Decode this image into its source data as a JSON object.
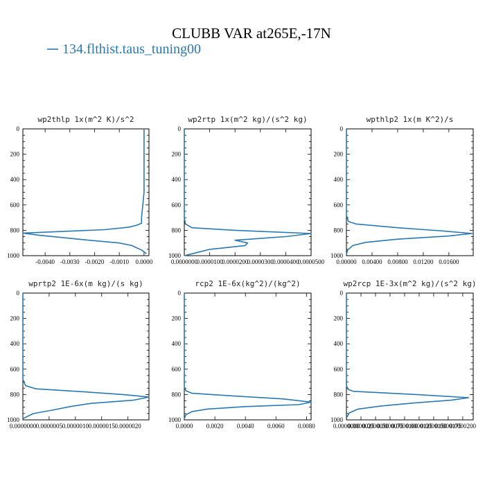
{
  "figure": {
    "title": "CLUBB VAR at265E,-17N",
    "legend": [
      {
        "label": "134.flthist.taus_tuning00",
        "color": "#2a78b0"
      }
    ]
  },
  "chart_data": [
    {
      "type": "line",
      "title": "wp2thlp  1x(m^2 K)/s^2",
      "xlim": [
        -0.0049,
        0.0002
      ],
      "ylim": [
        1000,
        0
      ],
      "xticks": [
        -0.004,
        -0.003,
        -0.002,
        -0.001,
        0.0
      ],
      "xtick_labels": [
        "-0.0040",
        "-0.0030",
        "-0.0020",
        "-0.0010",
        "0.0000"
      ],
      "yticks": [
        0,
        200,
        400,
        600,
        800,
        1000
      ],
      "ytick_labels": [
        "0",
        "200",
        "400",
        "600",
        "800",
        "1000"
      ],
      "series": [
        {
          "color": "#2a78b0",
          "x": [
            0.0,
            0.0,
            -0.0001,
            -0.0001,
            -0.0003,
            -0.0006,
            -0.0016,
            -0.0034,
            -0.0049,
            -0.0042,
            -0.0024,
            -0.001,
            -0.0005,
            -0.0001,
            0.0001
          ],
          "y": [
            0,
            500,
            700,
            745,
            760,
            775,
            795,
            810,
            822,
            840,
            875,
            900,
            920,
            955,
            985
          ]
        }
      ]
    },
    {
      "type": "line",
      "title": "wp2rtp  1x(m^2 kg)/(s^2 kg)",
      "xlim": [
        0.0,
        5e-05
      ],
      "ylim": [
        1000,
        0
      ],
      "xticks": [
        0.0,
        1e-05,
        2e-05,
        3e-05,
        4e-05,
        5e-05
      ],
      "xtick_labels": [
        "0.0000000",
        "0.0000100",
        "0.0000200",
        "0.0000300",
        "0.0000400",
        "0.0000500"
      ],
      "yticks": [
        0,
        200,
        400,
        600,
        800,
        1000
      ],
      "ytick_labels": [
        "0",
        "200",
        "400",
        "600",
        "800",
        "1000"
      ],
      "series": [
        {
          "color": "#2a78b0",
          "x": [
            0.0,
            0.0,
            5e-07,
            3e-06,
            2e-05,
            5e-05,
            4e-05,
            2e-05,
            2.5e-05,
            2.4e-05,
            1e-05,
            3e-06,
            0.0
          ],
          "y": [
            0,
            700,
            750,
            780,
            800,
            825,
            850,
            878,
            900,
            920,
            950,
            985,
            1000
          ]
        }
      ]
    },
    {
      "type": "line",
      "title": "wpthlp2  1x(m K^2)/s",
      "xlim": [
        0.0,
        0.0198
      ],
      "ylim": [
        1000,
        0
      ],
      "xticks": [
        0.0,
        0.004,
        0.008,
        0.012,
        0.016
      ],
      "xtick_labels": [
        "0.00000",
        "0.00400",
        "0.00800",
        "0.01200",
        "0.01600"
      ],
      "yticks": [
        0,
        200,
        400,
        600,
        800,
        1000
      ],
      "ytick_labels": [
        "0",
        "200",
        "400",
        "600",
        "800",
        "1000"
      ],
      "series": [
        {
          "color": "#2a78b0",
          "x": [
            0.0,
            0.0,
            0.0003,
            0.0015,
            0.008,
            0.015,
            0.0196,
            0.016,
            0.008,
            0.003,
            0.001,
            0.0002,
            0.0
          ],
          "y": [
            0,
            680,
            730,
            750,
            780,
            805,
            825,
            845,
            870,
            895,
            920,
            955,
            990
          ]
        }
      ]
    },
    {
      "type": "line",
      "title": "wprtp2  1E-6x(m kg)/(s kg)",
      "xlim": [
        0.0,
        2.4e-06
      ],
      "ylim": [
        1000,
        0
      ],
      "xticks": [
        0.0,
        5e-07,
        1e-06,
        1.5e-06,
        2e-06
      ],
      "xtick_labels": [
        "0.0000000",
        "0.0000005",
        "0.0000010",
        "0.0000015",
        "0.0000020"
      ],
      "yticks": [
        0,
        200,
        400,
        600,
        800,
        1000
      ],
      "ytick_labels": [
        "0",
        "200",
        "400",
        "600",
        "800",
        "1000"
      ],
      "series": [
        {
          "color": "#2a78b0",
          "x": [
            0.0,
            0.0,
            5e-08,
            2.5e-07,
            1.2e-06,
            1.9e-06,
            2.4e-06,
            2.1e-06,
            1.3e-06,
            9e-07,
            6e-07,
            2e-07,
            0.0
          ],
          "y": [
            0,
            680,
            730,
            755,
            780,
            800,
            820,
            845,
            870,
            895,
            920,
            950,
            990
          ]
        }
      ]
    },
    {
      "type": "line",
      "title": "rcp2  1E-6x(kg^2)/(kg^2)",
      "xlim": [
        0.0,
        0.0083
      ],
      "ylim": [
        1000,
        0
      ],
      "xticks": [
        0.0,
        0.002,
        0.004,
        0.006,
        0.008
      ],
      "xtick_labels": [
        "0.0000",
        "0.0020",
        "0.0040",
        "0.0060",
        "0.0080"
      ],
      "yticks": [
        0,
        200,
        400,
        600,
        800,
        1000
      ],
      "ytick_labels": [
        "0",
        "200",
        "400",
        "600",
        "800",
        "1000"
      ],
      "series": [
        {
          "color": "#2a78b0",
          "x": [
            0.0,
            0.0,
            0.0001,
            0.0005,
            0.003,
            0.0065,
            0.0083,
            0.0075,
            0.004,
            0.0015,
            0.0005,
            0.0001,
            0.0
          ],
          "y": [
            0,
            740,
            770,
            790,
            810,
            835,
            860,
            880,
            895,
            915,
            935,
            960,
            990
          ]
        }
      ]
    },
    {
      "type": "line",
      "title": "wp2rcp  1E-3x(m^2 kg)/(s^2 kg)",
      "xlim": [
        0.0,
        2.18e-05
      ],
      "ylim": [
        1000,
        0
      ],
      "xticks": [
        0.0,
        2.5e-06,
        5e-06,
        7.5e-06,
        1e-05,
        1.25e-05,
        1.5e-05,
        1.75e-05,
        2e-05
      ],
      "xtick_labels": [
        "0.0000000",
        "0.0000025",
        "0.0000050",
        "0.0000075",
        "0.0000100",
        "0.0000125",
        "0.0000150",
        "0.0000175",
        "0.0000200"
      ],
      "yticks": [
        0,
        200,
        400,
        600,
        800,
        1000
      ],
      "ytick_labels": [
        "0",
        "200",
        "400",
        "600",
        "800",
        "1000"
      ],
      "series": [
        {
          "color": "#2a78b0",
          "x": [
            0.0,
            0.0,
            3e-07,
            1.2e-06,
            1.2e-05,
            2.1e-05,
            1.8e-05,
            1.2e-05,
            6e-06,
            2e-06,
            5e-07,
            0.0
          ],
          "y": [
            0,
            730,
            760,
            775,
            800,
            825,
            845,
            865,
            890,
            915,
            945,
            985
          ]
        }
      ]
    }
  ]
}
